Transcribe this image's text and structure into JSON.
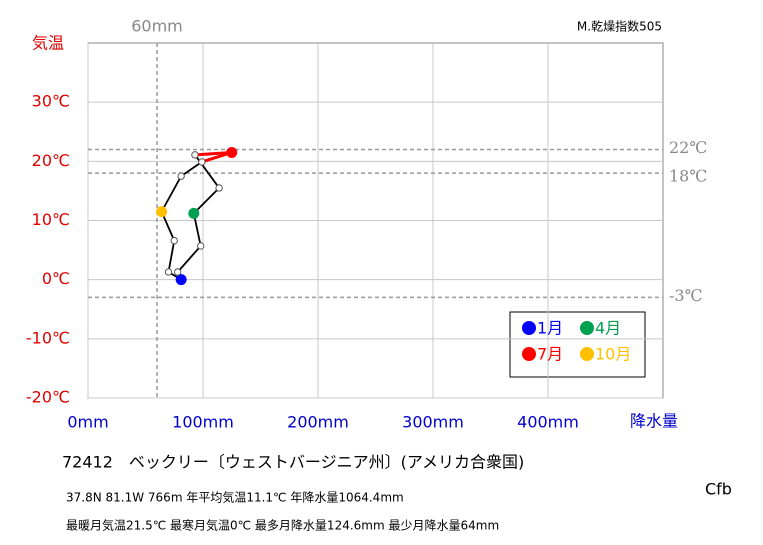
{
  "chart_data": {
    "type": "climograph",
    "y_axis_label": "気温",
    "x_axis_label": "降水量",
    "aridity": "M.乾燥指数505",
    "koppen": "Cfb",
    "title": "72412　ベックリー〔ウェストバージニア州〕(アメリカ合衆国)",
    "info_line1": "37.8N  81.1W 766m  年平均気温11.1℃ 年降水量1064.4mm",
    "info_line2": "最暖月気温21.5℃ 最寒月気温0℃ 最多月降水量124.6mm 最少月降水量64mm",
    "categories": [
      "1月",
      null,
      null,
      "4月",
      null,
      null,
      "7月",
      null,
      null,
      "10月",
      null,
      null
    ],
    "x": [
      81,
      78,
      98,
      92,
      114,
      93,
      125,
      99,
      81,
      64,
      75,
      70
    ],
    "values": [
      0,
      1.3,
      5.7,
      11.2,
      15.5,
      21.1,
      21.5,
      19.9,
      17.5,
      11.5,
      6.6,
      1.3
    ],
    "point_colors": [
      "#0000ff",
      null,
      null,
      "#00a050",
      null,
      null,
      "#ff0000",
      null,
      null,
      "#ffc000",
      null,
      null
    ],
    "line_color": "#000000",
    "xlim": [
      0,
      500
    ],
    "ylim": [
      -20,
      40
    ],
    "xticks": [
      {
        "value": 0,
        "label": "0mm"
      },
      {
        "value": 100,
        "label": "100mm"
      },
      {
        "value": 200,
        "label": "200mm"
      },
      {
        "value": 300,
        "label": "300mm"
      },
      {
        "value": 400,
        "label": "400mm"
      }
    ],
    "yticks": [
      {
        "value": -20,
        "label": "-20℃"
      },
      {
        "value": -10,
        "label": "-10℃"
      },
      {
        "value": 0,
        "label": "0℃"
      },
      {
        "value": 10,
        "label": "10℃"
      },
      {
        "value": 20,
        "label": "20℃"
      },
      {
        "value": 30,
        "label": "30℃"
      }
    ],
    "hlines": [
      {
        "value": 22,
        "label": "22℃"
      },
      {
        "value": 18,
        "label": "18℃"
      },
      {
        "value": -3,
        "label": "-3℃"
      }
    ],
    "vlines": [
      {
        "value": 60,
        "label": "60mm"
      }
    ],
    "grid": true
  }
}
